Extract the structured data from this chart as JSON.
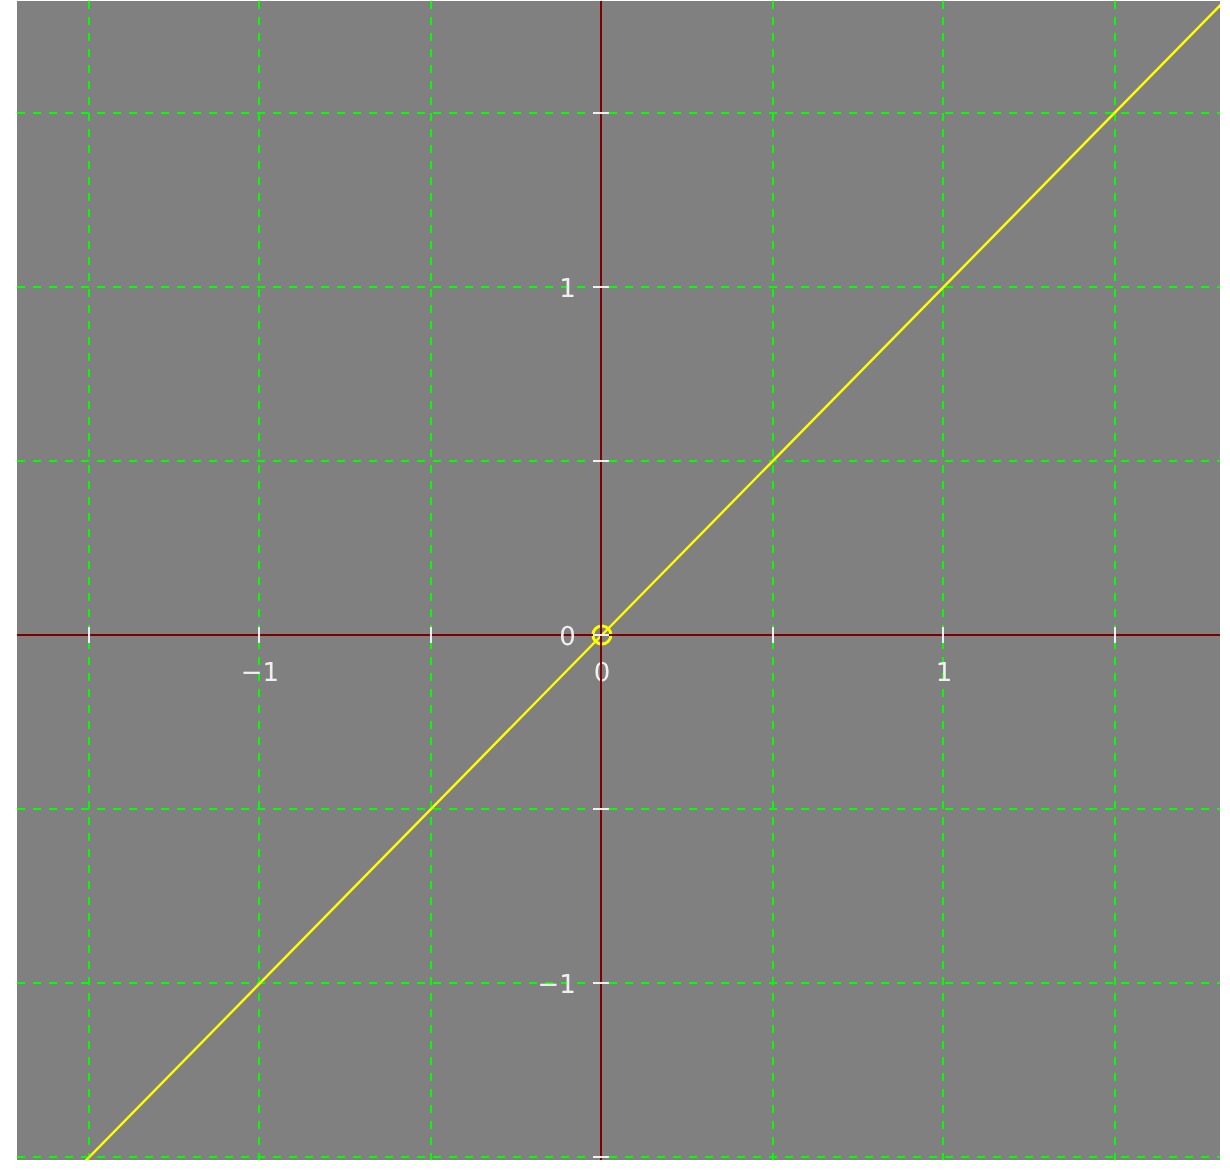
{
  "chart_data": {
    "type": "line",
    "xlim": [
      -1.71,
      1.81
    ],
    "ylim": [
      -1.51,
      1.82
    ],
    "xticks": [
      {
        "value": -1.5,
        "label": null
      },
      -1,
      {
        "value": -0.5,
        "label": null
      },
      0,
      {
        "value": 0.5,
        "label": null
      },
      1,
      {
        "value": 1.5,
        "label": null
      }
    ],
    "yticks": [
      {
        "value": -1.5,
        "label": null
      },
      -1,
      {
        "value": -0.5,
        "label": null
      },
      0,
      {
        "value": 0.5,
        "label": null
      },
      1,
      {
        "value": 1.5,
        "label": null
      }
    ],
    "grid": true,
    "line_style": "solid",
    "series": [
      {
        "color": "#ffff00",
        "x": [
          -1.51,
          0,
          1.81
        ],
        "values": [
          -1.51,
          0,
          1.81
        ]
      },
      {
        "type": "scatter",
        "color": "#ffff00",
        "marker": "circle",
        "x": [
          0
        ],
        "values": [
          0
        ]
      }
    ]
  }
}
